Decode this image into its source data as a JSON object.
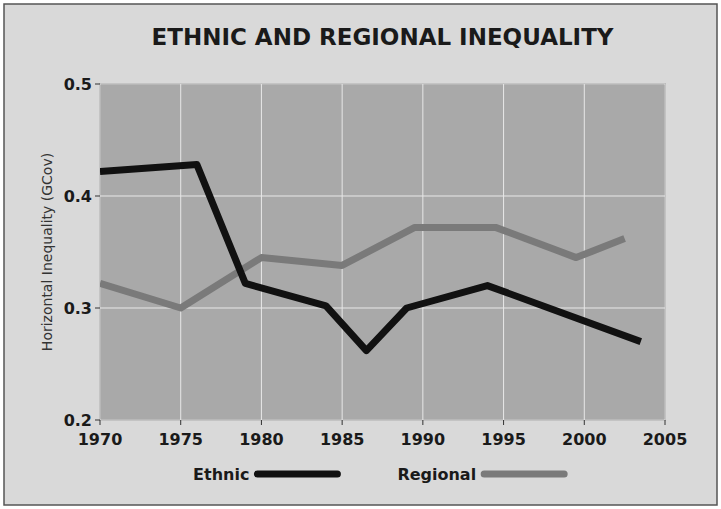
{
  "chart_data": {
    "type": "line",
    "title": "ETHNIC AND REGIONAL INEQUALITY",
    "y_label": "Horizontal Inequality (GCov)",
    "series": [
      {
        "name": "Ethnic",
        "color": "#111111",
        "x": [
          1970,
          1976,
          1979,
          1984,
          1986.5,
          1989,
          1994,
          2003.5
        ],
        "values": [
          0.422,
          0.428,
          0.322,
          0.302,
          0.262,
          0.3,
          0.32,
          0.27
        ]
      },
      {
        "name": "Regional",
        "color": "#7a7a7a",
        "x": [
          1970,
          1975,
          1980,
          1985,
          1989.5,
          1994.5,
          1999.5,
          2002.5
        ],
        "values": [
          0.322,
          0.3,
          0.345,
          0.338,
          0.372,
          0.372,
          0.345,
          0.362
        ]
      }
    ],
    "xlim": [
      1970,
      2005
    ],
    "xticks": [
      1970,
      1975,
      1980,
      1985,
      1990,
      1995,
      2000,
      2005
    ],
    "ylim": [
      0.2,
      0.5
    ],
    "yticks": [
      0.2,
      0.3,
      0.4,
      0.5
    ],
    "grid": true,
    "legend": "bottom"
  }
}
